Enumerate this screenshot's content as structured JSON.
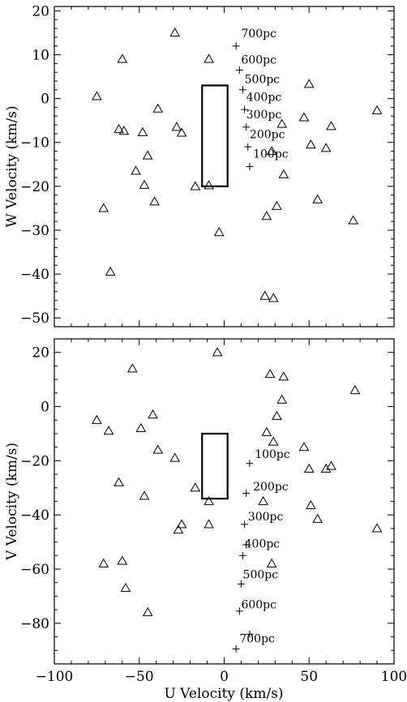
{
  "chart_data": [
    {
      "type": "scatter",
      "xlabel": "",
      "ylabel": "W Velocity (km/s)",
      "xlim": [
        -100,
        100
      ],
      "ylim": [
        -52,
        21
      ],
      "xticks": [
        -100,
        -50,
        0,
        50,
        100
      ],
      "yticks": [
        -50,
        -40,
        -30,
        -20,
        -10,
        0,
        10,
        20
      ],
      "xtick_labels_shown": false,
      "series": [
        {
          "marker": "triangle",
          "points": [
            [
              -29,
              15
            ],
            [
              -60,
              9
            ],
            [
              -9,
              9
            ],
            [
              -75,
              0.5
            ],
            [
              -39,
              -2.3
            ],
            [
              -62,
              -7
            ],
            [
              -59,
              -7.4
            ],
            [
              -48,
              -7.7
            ],
            [
              -28,
              -6.5
            ],
            [
              -25,
              -7.8
            ],
            [
              -45,
              -13
            ],
            [
              -52,
              -16.5
            ],
            [
              -47,
              -19.7
            ],
            [
              -41,
              -23.5
            ],
            [
              -71,
              -25
            ],
            [
              -17,
              -20
            ],
            [
              -9,
              -19.8
            ],
            [
              -3,
              -30.5
            ],
            [
              -67,
              -39.5
            ],
            [
              50,
              3.3
            ],
            [
              90,
              -2.7
            ],
            [
              47,
              -4.3
            ],
            [
              34,
              -5.8
            ],
            [
              63,
              -6.3
            ],
            [
              51,
              -10.5
            ],
            [
              60,
              -11.3
            ],
            [
              28,
              -12
            ],
            [
              35,
              -17.3
            ],
            [
              55,
              -23
            ],
            [
              31,
              -24.5
            ],
            [
              25,
              -26.8
            ],
            [
              76,
              -27.8
            ],
            [
              24,
              -45
            ],
            [
              29,
              -45.5
            ]
          ]
        },
        {
          "marker": "plus",
          "points": [
            [
              7,
              12
            ],
            [
              9,
              6.5
            ],
            [
              11,
              2
            ],
            [
              12,
              -2.5
            ],
            [
              13,
              -6.5
            ],
            [
              14,
              -11
            ],
            [
              15,
              -15.5
            ]
          ]
        }
      ],
      "annotations": [
        {
          "text": "700pc",
          "x": 10,
          "y": 14
        },
        {
          "text": "600pc",
          "x": 10,
          "y": 8
        },
        {
          "text": "500pc",
          "x": 12,
          "y": 3.5
        },
        {
          "text": "400pc",
          "x": 13,
          "y": -0.5
        },
        {
          "text": "300pc",
          "x": 13,
          "y": -4.5
        },
        {
          "text": "200pc",
          "x": 15,
          "y": -9
        },
        {
          "text": "100pc",
          "x": 17,
          "y": -13.5
        }
      ],
      "box": {
        "x0": -13,
        "x1": 2,
        "y0": -20,
        "y1": 3
      }
    },
    {
      "type": "scatter",
      "xlabel": "U Velocity (km/s)",
      "ylabel": "V Velocity (km/s)",
      "xlim": [
        -100,
        100
      ],
      "ylim": [
        -95,
        25
      ],
      "xticks": [
        -100,
        -50,
        0,
        50,
        100
      ],
      "yticks": [
        -80,
        -60,
        -40,
        -20,
        0,
        20
      ],
      "xtick_labels_shown": true,
      "series": [
        {
          "marker": "triangle",
          "points": [
            [
              -4,
              20
            ],
            [
              -54,
              14
            ],
            [
              27,
              12
            ],
            [
              35,
              11
            ],
            [
              77,
              6
            ],
            [
              34,
              2.5
            ],
            [
              31,
              -3.5
            ],
            [
              -42,
              -3
            ],
            [
              -75,
              -5
            ],
            [
              -49,
              -8
            ],
            [
              -68,
              -9
            ],
            [
              25,
              -9.5
            ],
            [
              29,
              -13
            ],
            [
              47,
              -15
            ],
            [
              -39,
              -16
            ],
            [
              -29,
              -19
            ],
            [
              50,
              -23
            ],
            [
              60,
              -23
            ],
            [
              63,
              -22
            ],
            [
              -62,
              -28
            ],
            [
              -17,
              -30
            ],
            [
              -47,
              -33
            ],
            [
              -9,
              -35
            ],
            [
              23,
              -35
            ],
            [
              51,
              -36.5
            ],
            [
              55,
              -41.5
            ],
            [
              -25,
              -43.5
            ],
            [
              -27,
              -45.5
            ],
            [
              -9,
              -43.5
            ],
            [
              90,
              -45
            ],
            [
              -71,
              -58
            ],
            [
              -60,
              -57
            ],
            [
              28,
              -58
            ],
            [
              -58,
              -67
            ],
            [
              -45,
              -76
            ]
          ]
        },
        {
          "marker": "plus",
          "points": [
            [
              15,
              -21
            ],
            [
              13,
              -32
            ],
            [
              12,
              -43.5
            ],
            [
              13,
              -51
            ],
            [
              11,
              -55
            ],
            [
              10,
              -65.5
            ],
            [
              9,
              -75.5
            ],
            [
              7,
              -89.5
            ],
            [
              15,
              -84
            ]
          ]
        }
      ],
      "annotations": [
        {
          "text": "100pc",
          "x": 18,
          "y": -19
        },
        {
          "text": "200pc",
          "x": 17,
          "y": -31
        },
        {
          "text": "300pc",
          "x": 14,
          "y": -42
        },
        {
          "text": "400pc",
          "x": 12,
          "y": -52
        },
        {
          "text": "500pc",
          "x": 11,
          "y": -63.5
        },
        {
          "text": "600pc",
          "x": 10,
          "y": -74.5
        },
        {
          "text": "700pc",
          "x": 9,
          "y": -87
        }
      ],
      "box": {
        "x0": -13,
        "x1": 2,
        "y0": -34,
        "y1": -10
      }
    }
  ]
}
